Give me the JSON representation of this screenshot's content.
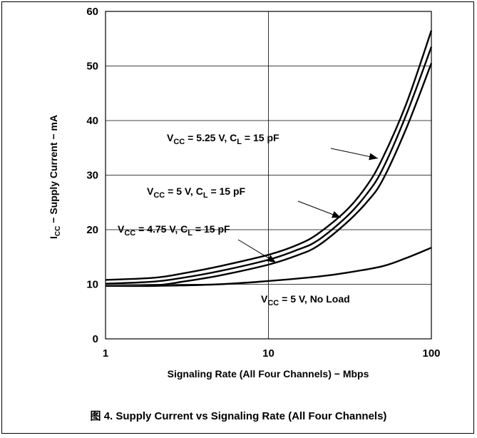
{
  "chart_data": {
    "type": "line",
    "xscale": "log",
    "xlim": [
      1,
      100
    ],
    "ylim": [
      0,
      60
    ],
    "x_ticks": [
      "1",
      "10",
      "100"
    ],
    "y_ticks": [
      "0",
      "10",
      "20",
      "30",
      "40",
      "50",
      "60"
    ],
    "xlabel": "Signaling Rate (All Four Channels) − Mbps",
    "ylabel": "I CC − Supply Current − mA",
    "grid": true,
    "series": [
      {
        "name": "VCC = 5.25 V, CL = 15 pF",
        "x": [
          1,
          2,
          3,
          5,
          10,
          15,
          20,
          30,
          40,
          50,
          70,
          100
        ],
        "y": [
          10.8,
          11.2,
          12,
          13.3,
          15.4,
          17.2,
          19.2,
          23.5,
          28,
          33,
          43,
          56.5
        ]
      },
      {
        "name": "VCC = 5 V, CL = 15 pF",
        "x": [
          1,
          2,
          3,
          5,
          10,
          15,
          20,
          30,
          40,
          50,
          70,
          100
        ],
        "y": [
          10.1,
          10.5,
          11.2,
          12.4,
          14.5,
          16.3,
          18,
          22.3,
          26.5,
          31,
          41,
          53.5
        ]
      },
      {
        "name": "VCC = 4.75 V, CL = 15 pF",
        "x": [
          1,
          2,
          3,
          5,
          10,
          15,
          20,
          30,
          40,
          50,
          70,
          100
        ],
        "y": [
          9.7,
          9.8,
          10.5,
          11.6,
          13.6,
          15.3,
          17,
          21.2,
          25,
          29,
          38.5,
          50.5
        ]
      },
      {
        "name": "VCC = 5 V, No Load",
        "x": [
          1,
          2,
          5,
          10,
          20,
          30,
          50,
          70,
          100
        ],
        "y": [
          9.7,
          9.7,
          10,
          10.6,
          11.4,
          12.1,
          13.3,
          14.8,
          16.7
        ]
      }
    ],
    "annotations": [
      {
        "text": "VCC = 5.25 V, CL = 15 pF"
      },
      {
        "text": "VCC = 5 V, CL = 15 pF"
      },
      {
        "text": "VCC = 4.75 V, CL = 15 pF"
      },
      {
        "text": "VCC = 5 V, No Load"
      }
    ]
  },
  "caption": "图 4. Supply Current vs Signaling Rate (All Four Channels)"
}
